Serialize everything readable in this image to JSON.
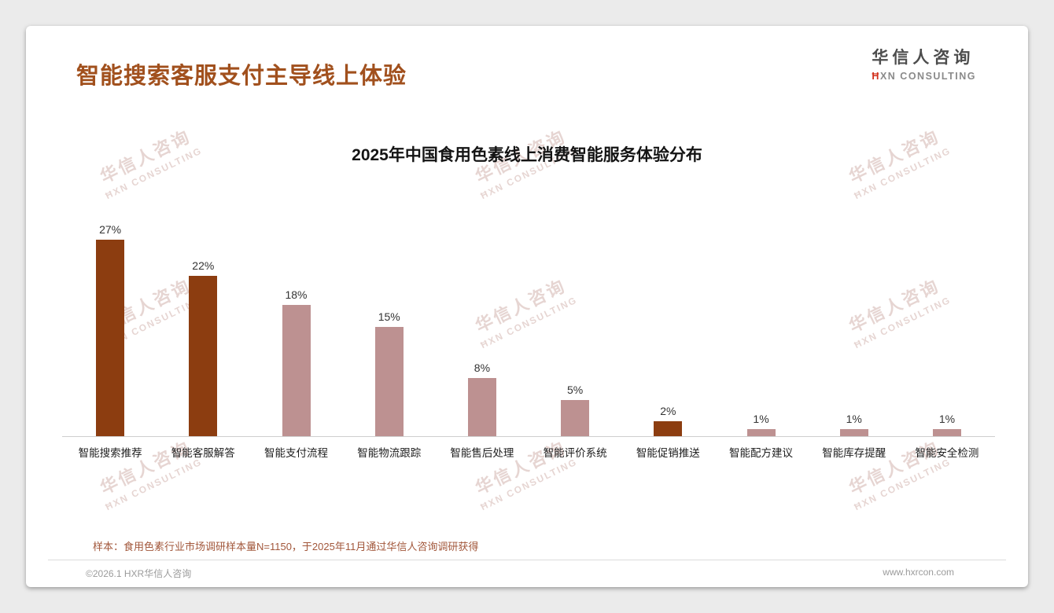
{
  "header": {
    "title": "智能搜索客服支付主导线上体验"
  },
  "logo": {
    "name_cn": "华信人咨询",
    "name_en_initial": "Ħ",
    "name_en_rest": "XN CONSULTING"
  },
  "watermark": {
    "line1": "华信人咨询",
    "line2": "ĦXN CONSULTING"
  },
  "note": {
    "text": "样本：食用色素行业市场调研样本量N=1150，于2025年11月通过华信人咨询调研获得"
  },
  "footer": {
    "copyright": "©2026.1 HXR华信人咨询",
    "website": "www.hxrcon.com"
  },
  "chart_data": {
    "type": "bar",
    "title": "2025年中国食用色素线上消费智能服务体验分布",
    "categories": [
      "智能搜索推荐",
      "智能客服解答",
      "智能支付流程",
      "智能物流跟踪",
      "智能售后处理",
      "智能评价系统",
      "智能促销推送",
      "智能配方建议",
      "智能库存提醒",
      "智能安全检测"
    ],
    "values": [
      27,
      22,
      18,
      15,
      8,
      5,
      2,
      1,
      1,
      1
    ],
    "value_labels": [
      "27%",
      "22%",
      "18%",
      "15%",
      "8%",
      "5%",
      "2%",
      "1%",
      "1%",
      "1%"
    ],
    "bar_palette": {
      "dark": "#8c3d10",
      "light": "#bd9191"
    },
    "bar_color_keys": [
      "dark",
      "dark",
      "light",
      "light",
      "light",
      "light",
      "dark",
      "light",
      "light",
      "light"
    ],
    "ylim": [
      0,
      30
    ],
    "xlabel": "",
    "ylabel": "",
    "grid": false,
    "legend": false
  }
}
